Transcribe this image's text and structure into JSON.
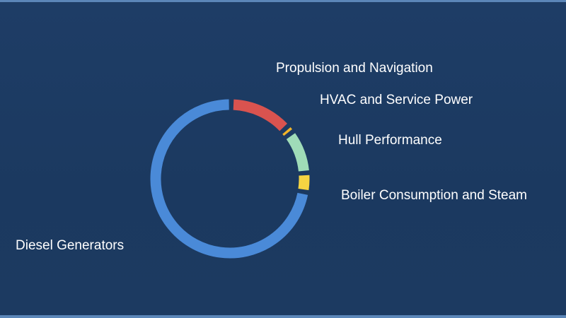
{
  "chart_data": {
    "type": "pie",
    "variant": "donut",
    "categories": [
      "Propulsion and Navigation",
      "HVAC and Service Power",
      "Hull Performance",
      "Boiler Consumption and Steam",
      "Diesel Generators"
    ],
    "values": [
      13,
      1.5,
      9,
      4,
      72.5
    ],
    "colors": [
      "#d9534f",
      "#f0b429",
      "#9fdcb8",
      "#f5d442",
      "#4a8ad8"
    ],
    "labels_outside": true,
    "legend": "none"
  }
}
